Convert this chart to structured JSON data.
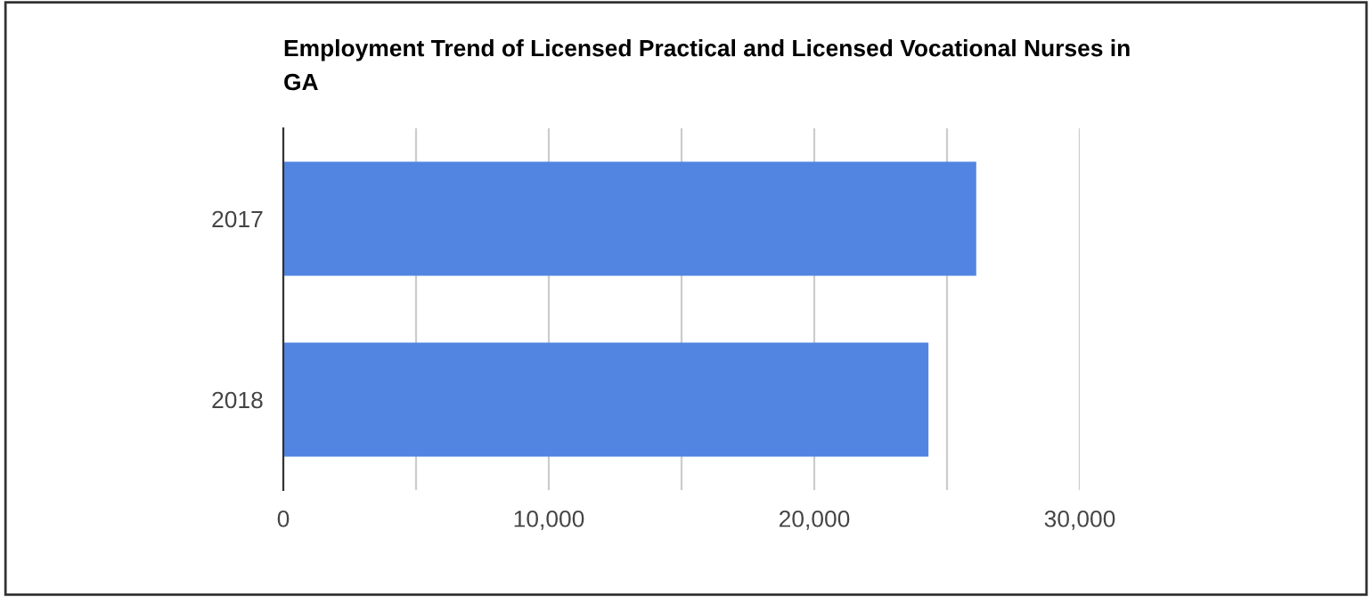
{
  "chart_data": {
    "type": "bar",
    "orientation": "horizontal",
    "title": "Employment Trend of Licensed Practical and Licensed Vocational Nurses in\nGA",
    "categories": [
      "2017",
      "2018"
    ],
    "values": [
      26100,
      24300
    ],
    "color": "#5285e1",
    "xlim": [
      0,
      30000
    ],
    "xticks": [
      0,
      {
        "value": 5000,
        "label": null
      },
      {
        "value": 10000,
        "label": "10,000"
      },
      {
        "value": 15000,
        "label": null
      },
      {
        "value": 20000,
        "label": "20,000"
      },
      {
        "value": 25000,
        "label": null
      },
      {
        "value": 30000,
        "label": "30,000"
      }
    ],
    "grid": "x",
    "legend": false
  }
}
